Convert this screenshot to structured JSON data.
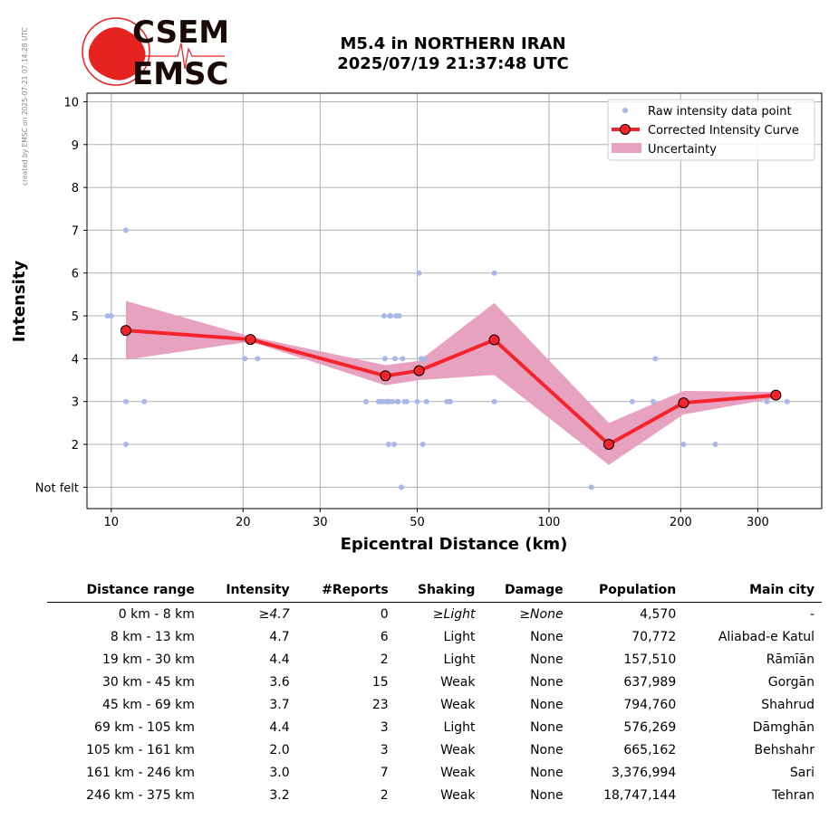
{
  "watermark": "created by EMSC on 2025-07-21 07:14:28 UTC",
  "logo": {
    "line1": "CSEM",
    "line2": "EMSC"
  },
  "title": {
    "line1": "M5.4 in NORTHERN IRAN",
    "line2": "2025/07/19 21:37:48 UTC"
  },
  "colors": {
    "raw": "#a9b8e6",
    "curve": "#f5232b",
    "uncertainty": "#e6a2bf",
    "logo": "#e6231f"
  },
  "chart_data": {
    "type": "scatter",
    "xlabel": "Epicentral Distance (km)",
    "ylabel": "Intensity",
    "xscale": "log",
    "xlim": [
      8.8,
      420
    ],
    "ylim": [
      0.5,
      10.2
    ],
    "x_ticks": [
      10,
      20,
      30,
      50,
      100,
      200,
      300
    ],
    "x_tick_labels": [
      "10",
      "20",
      "30",
      "50",
      "100",
      "200",
      "300"
    ],
    "y_ticks": [
      1,
      2,
      3,
      4,
      5,
      6,
      7,
      8,
      9,
      10
    ],
    "y_tick_labels": [
      "Not felt",
      "2",
      "3",
      "4",
      "5",
      "6",
      "7",
      "8",
      "9",
      "10"
    ],
    "grid": true,
    "legend_position": "top-right",
    "series": [
      {
        "name": "Raw intensity data point",
        "kind": "points",
        "x": [
          9.8,
          10,
          10.8,
          10.8,
          10.8,
          11.9,
          20.2,
          21.6,
          38.2,
          40.8,
          41.3,
          41.7,
          42,
          42.2,
          42.5,
          42.5,
          42.8,
          43,
          43.1,
          43.3,
          43.5,
          43.9,
          44.3,
          44.5,
          44.7,
          45,
          45.2,
          45.5,
          46,
          46.3,
          46.8,
          47.3,
          50,
          50.5,
          51,
          51.5,
          52,
          52.5,
          58.5,
          59.5,
          75,
          75,
          125,
          155,
          173,
          175,
          203,
          240,
          315,
          350
        ],
        "y": [
          5,
          5,
          7,
          3,
          2,
          3,
          4,
          4,
          3,
          3,
          3,
          3,
          5,
          4,
          3,
          3,
          3,
          2,
          3,
          5,
          5,
          3,
          2,
          4,
          5,
          3,
          3,
          5,
          1,
          4,
          3,
          3,
          3,
          6,
          4,
          2,
          4,
          3,
          3,
          3,
          6,
          3,
          1,
          3,
          3,
          4,
          2,
          2,
          3,
          3
        ]
      },
      {
        "name": "Corrected Intensity Curve",
        "kind": "line",
        "x": [
          10.8,
          20.8,
          42.3,
          50.5,
          75,
          137,
          203,
          330
        ],
        "y": [
          4.66,
          4.45,
          3.6,
          3.72,
          4.44,
          2.0,
          2.97,
          3.15
        ]
      },
      {
        "name": "Uncertainty",
        "kind": "band",
        "x": [
          10.8,
          20.8,
          42.3,
          50.5,
          75,
          137,
          203,
          330
        ],
        "y_low": [
          3.98,
          4.4,
          3.38,
          3.5,
          3.62,
          1.52,
          2.7,
          3.08
        ],
        "y_high": [
          5.35,
          4.52,
          3.85,
          3.95,
          5.3,
          2.5,
          3.25,
          3.22
        ]
      }
    ]
  },
  "table": {
    "headers": [
      "Distance range",
      "Intensity",
      "#Reports",
      "Shaking",
      "Damage",
      "Population",
      "Main city"
    ],
    "rows": [
      {
        "distance": "0 km -    8 km",
        "intensity": "≥4.7",
        "reports": "0",
        "shaking": "≥Light",
        "damage": "≥None",
        "population": "4,570",
        "city": "-",
        "italic": true
      },
      {
        "distance": "8 km -   13 km",
        "intensity": "4.7",
        "reports": "6",
        "shaking": "Light",
        "damage": "None",
        "population": "70,772",
        "city": "Aliabad-e Katul"
      },
      {
        "distance": "19 km -   30 km",
        "intensity": "4.4",
        "reports": "2",
        "shaking": "Light",
        "damage": "None",
        "population": "157,510",
        "city": "Rāmīān"
      },
      {
        "distance": "30 km -   45 km",
        "intensity": "3.6",
        "reports": "15",
        "shaking": "Weak",
        "damage": "None",
        "population": "637,989",
        "city": "Gorgān"
      },
      {
        "distance": "45 km -   69 km",
        "intensity": "3.7",
        "reports": "23",
        "shaking": "Weak",
        "damage": "None",
        "population": "794,760",
        "city": "Shahrud"
      },
      {
        "distance": "69 km -  105 km",
        "intensity": "4.4",
        "reports": "3",
        "shaking": "Light",
        "damage": "None",
        "population": "576,269",
        "city": "Dāmghān"
      },
      {
        "distance": "105 km -  161 km",
        "intensity": "2.0",
        "reports": "3",
        "shaking": "Weak",
        "damage": "None",
        "population": "665,162",
        "city": "Behshahr"
      },
      {
        "distance": "161 km -  246 km",
        "intensity": "3.0",
        "reports": "7",
        "shaking": "Weak",
        "damage": "None",
        "population": "3,376,994",
        "city": "Sari"
      },
      {
        "distance": "246 km -  375 km",
        "intensity": "3.2",
        "reports": "2",
        "shaking": "Weak",
        "damage": "None",
        "population": "18,747,144",
        "city": "Tehran"
      }
    ]
  }
}
